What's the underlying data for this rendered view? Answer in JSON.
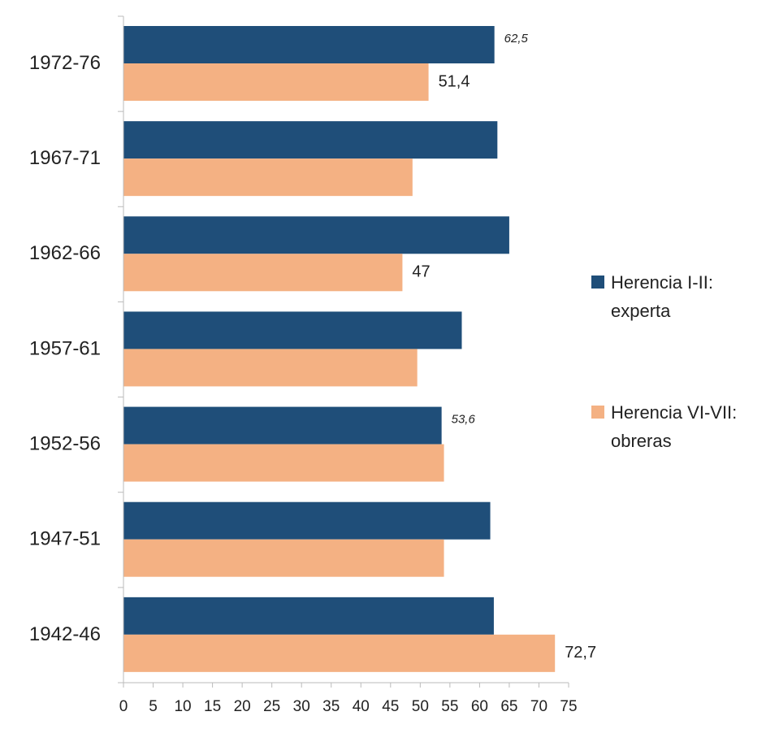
{
  "chart_data": {
    "type": "barh",
    "categories": [
      "1972-76",
      "1967-71",
      "1962-66",
      "1957-61",
      "1952-56",
      "1947-51",
      "1942-46"
    ],
    "series": [
      {
        "name": "Herencia I-II: experta",
        "color": "#1f4e79",
        "values": [
          62.5,
          63,
          65,
          57,
          53.6,
          61.8,
          62.4
        ],
        "value_labels": [
          "62,5",
          null,
          null,
          null,
          "53,6",
          null,
          null
        ]
      },
      {
        "name": "Herencia VI-VII: obreras",
        "color": "#f4b183",
        "values": [
          51.4,
          48.7,
          47,
          49.5,
          54,
          54,
          72.7
        ],
        "value_labels": [
          "51,4",
          null,
          "47",
          null,
          null,
          null,
          "72,7"
        ]
      }
    ],
    "xlim": [
      0,
      75
    ],
    "xticks": [
      0,
      5,
      10,
      15,
      20,
      25,
      30,
      35,
      40,
      45,
      50,
      55,
      60,
      65,
      70,
      75
    ],
    "legend": "right"
  }
}
